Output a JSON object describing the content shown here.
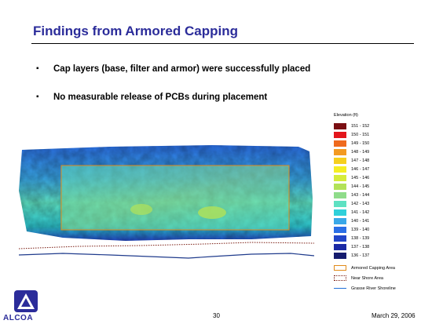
{
  "slide": {
    "title": "Findings from Armored Capping",
    "bullets": [
      "Cap layers (base, filter and armor) were successfully placed",
      "No measurable release of PCBs during placement"
    ],
    "bullet_marker": "▪",
    "page_number": "30",
    "date": "March 29, 2006",
    "logo_text": "ALCOA"
  },
  "legend": {
    "title": "Elevation (ft)",
    "bins": [
      {
        "label": "151 - 152",
        "color": "#7a0e12"
      },
      {
        "label": "150 - 151",
        "color": "#e3161c"
      },
      {
        "label": "149 - 150",
        "color": "#ef6a1e"
      },
      {
        "label": "148 - 149",
        "color": "#f39a22"
      },
      {
        "label": "147 - 148",
        "color": "#f6cf1e"
      },
      {
        "label": "146 - 147",
        "color": "#f5ee23"
      },
      {
        "label": "145 - 146",
        "color": "#d6ec3a"
      },
      {
        "label": "144 - 145",
        "color": "#b2e258"
      },
      {
        "label": "143 - 144",
        "color": "#8fdc8a"
      },
      {
        "label": "142 - 143",
        "color": "#5ee1c2"
      },
      {
        "label": "141 - 142",
        "color": "#2fd0da"
      },
      {
        "label": "140 - 141",
        "color": "#39a8e8"
      },
      {
        "label": "139 - 140",
        "color": "#2b6fe6"
      },
      {
        "label": "138 - 139",
        "color": "#2245c8"
      },
      {
        "label": "137 - 138",
        "color": "#1b2aa5"
      },
      {
        "label": "136 - 137",
        "color": "#151b6e"
      }
    ],
    "symbols": [
      {
        "label": "Armored Capping Area",
        "kind": "box-solid",
        "color": "#e08a1a"
      },
      {
        "label": "Near Shore Area",
        "kind": "box-dotted",
        "color": "#7a1b10"
      },
      {
        "label": "Grasse River Shoreline",
        "kind": "line",
        "color": "#1f6fd8"
      }
    ]
  },
  "colors": {
    "title": "#2b2c9a",
    "logo": "#2b2c9a"
  }
}
